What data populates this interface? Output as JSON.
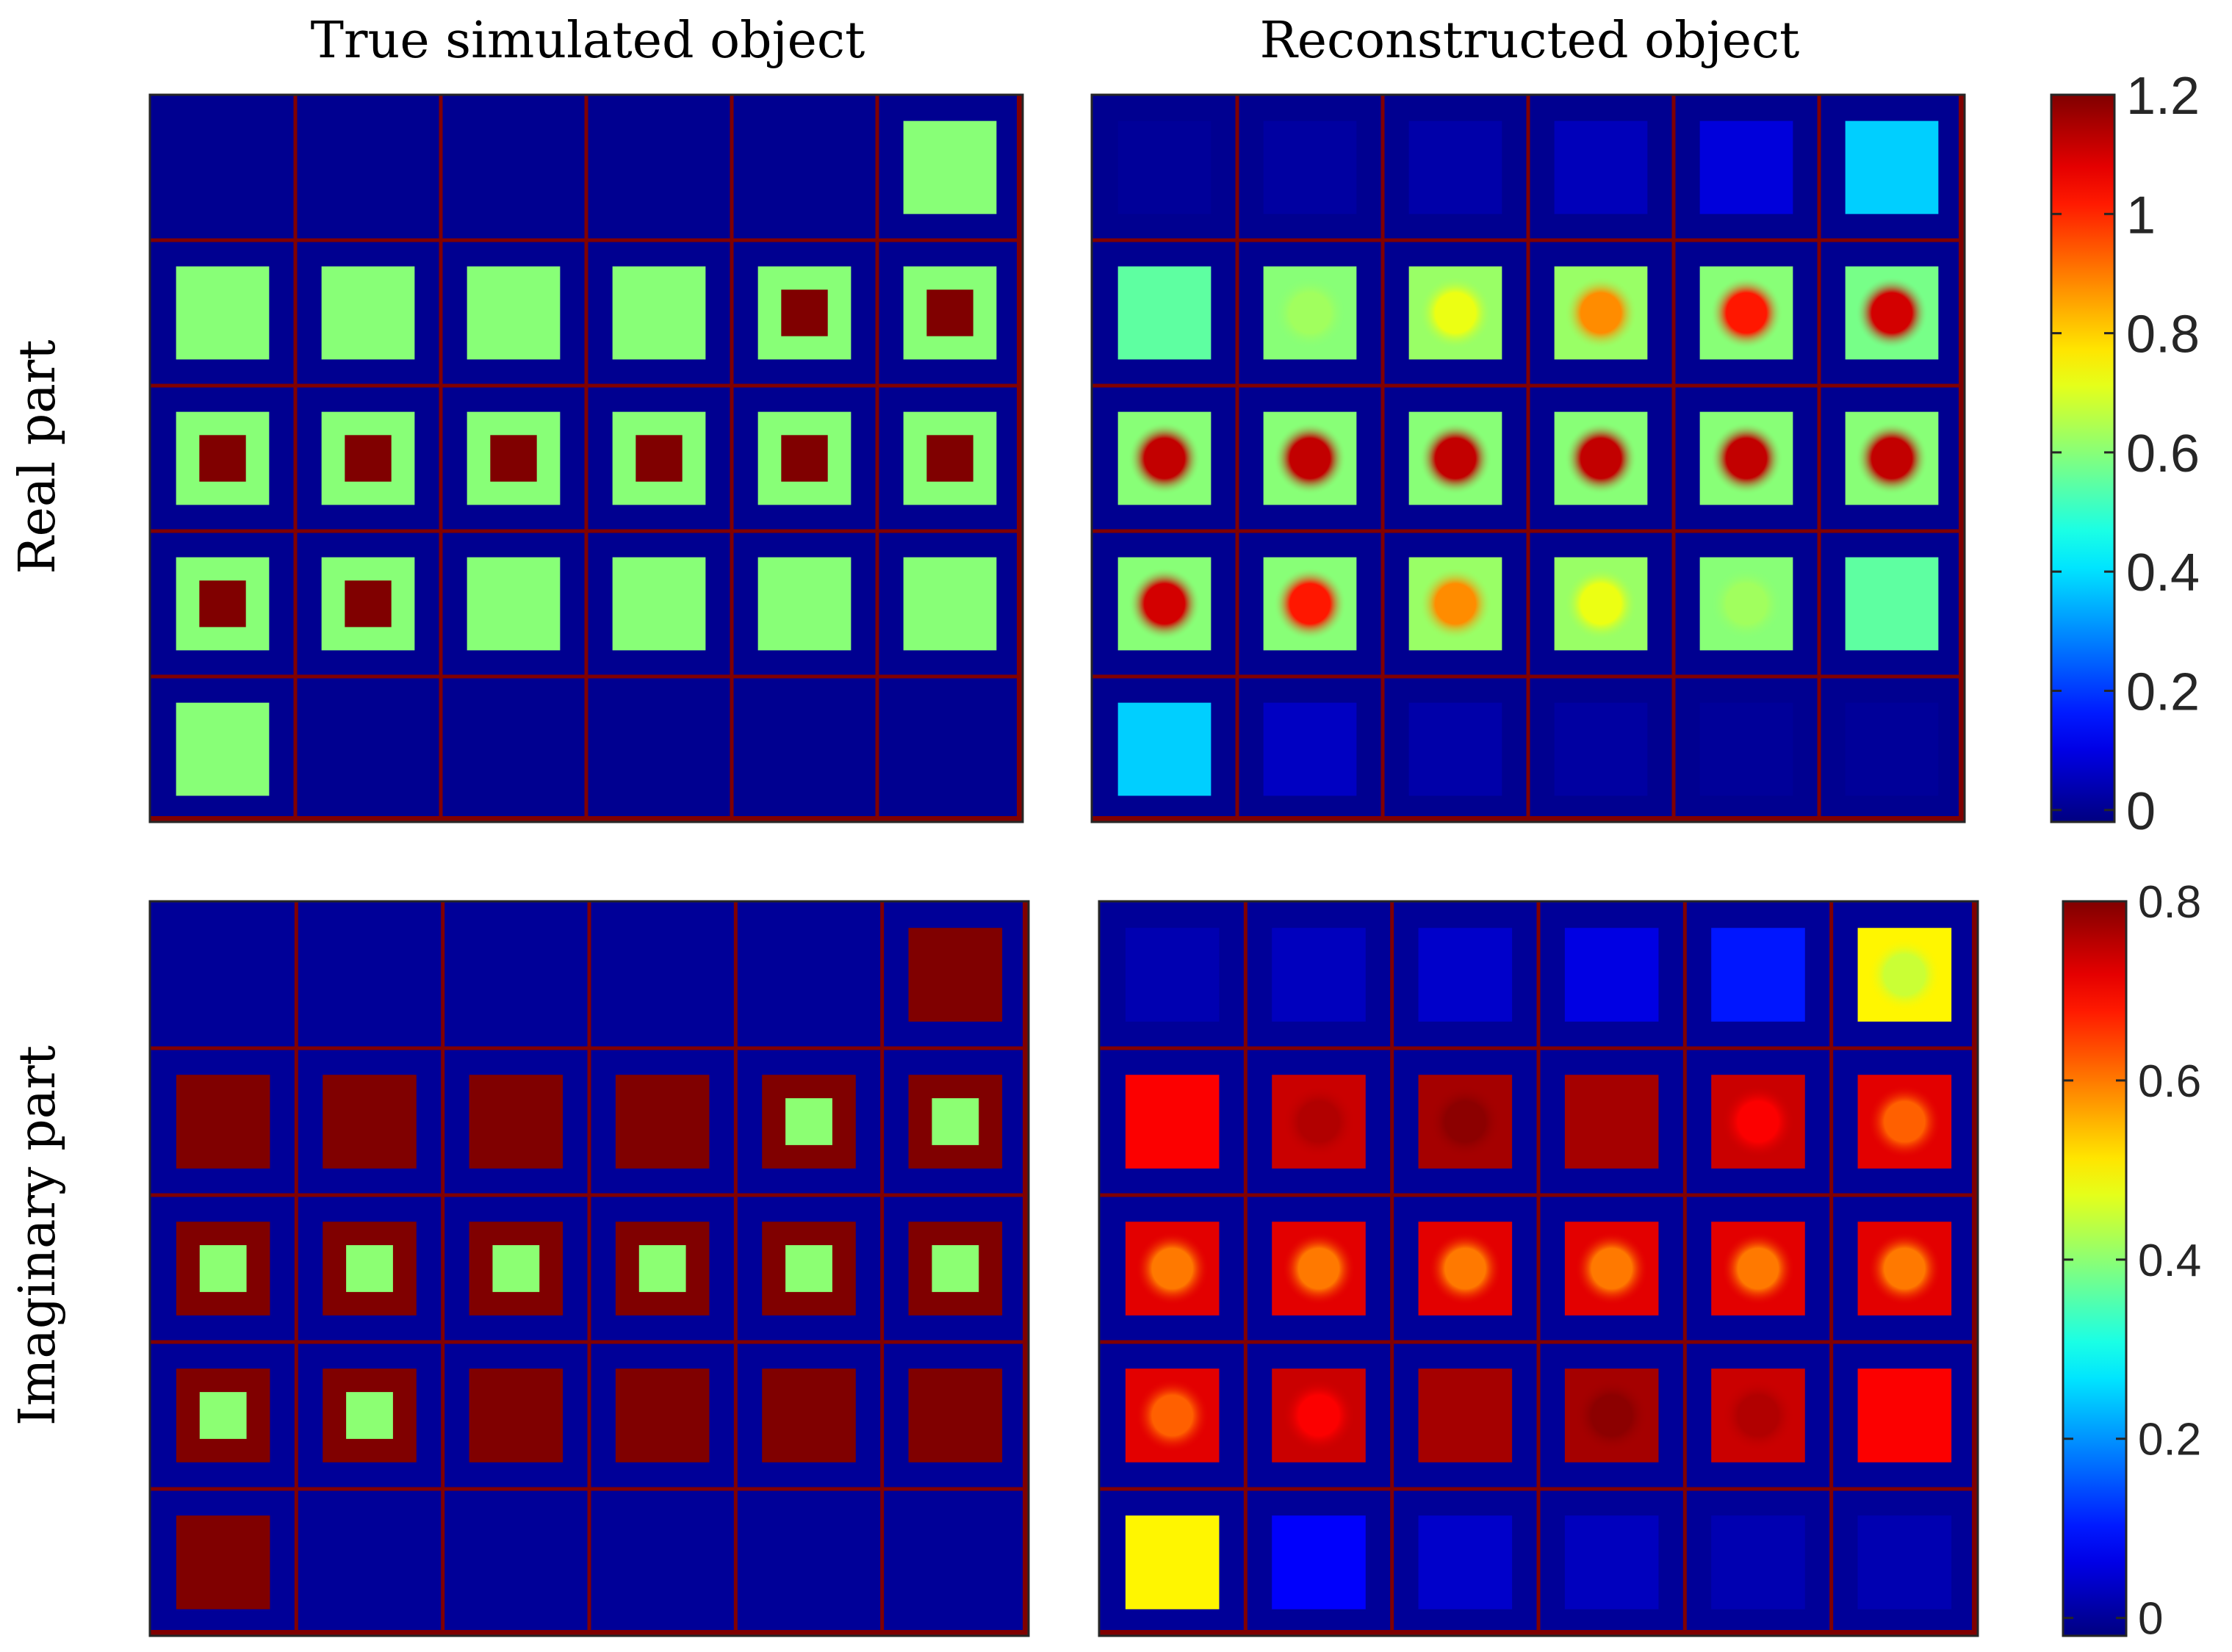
{
  "column_titles": [
    "True simulated object",
    "Reconstructed object"
  ],
  "row_labels": [
    "Real part",
    "Imaginary part"
  ],
  "chart_data": [
    {
      "type": "heatmap",
      "panel": "real-true",
      "rows": 5,
      "cols": 6,
      "colormap": "jet",
      "clim": [
        -0.02,
        1.2
      ],
      "outer": [
        [
          -1,
          -1,
          -1,
          -1,
          -1,
          0.6
        ],
        [
          0.6,
          0.6,
          0.6,
          0.6,
          0.6,
          0.6
        ],
        [
          0.6,
          0.6,
          0.6,
          0.6,
          0.6,
          0.6
        ],
        [
          0.6,
          0.6,
          0.6,
          0.6,
          0.6,
          0.6
        ],
        [
          0.6,
          -1,
          -1,
          -1,
          -1,
          -1
        ]
      ],
      "inner": [
        [
          -1,
          -1,
          -1,
          -1,
          -1,
          -1
        ],
        [
          -1,
          -1,
          -1,
          -1,
          1.2,
          1.2
        ],
        [
          1.2,
          1.2,
          1.2,
          1.2,
          1.2,
          1.2
        ],
        [
          1.2,
          1.2,
          -1,
          -1,
          -1,
          -1
        ],
        [
          -1,
          -1,
          -1,
          -1,
          -1,
          -1
        ]
      ],
      "background": 0
    },
    {
      "type": "heatmap",
      "panel": "real-reconstructed",
      "rows": 5,
      "cols": 6,
      "colormap": "jet",
      "clim": [
        -0.02,
        1.2
      ],
      "outer": [
        [
          0.01,
          0.02,
          0.03,
          0.05,
          0.09,
          0.38
        ],
        [
          0.55,
          0.6,
          0.62,
          0.62,
          0.6,
          0.58
        ],
        [
          0.6,
          0.6,
          0.6,
          0.6,
          0.6,
          0.6
        ],
        [
          0.6,
          0.6,
          0.62,
          0.62,
          0.6,
          0.55
        ],
        [
          0.38,
          0.06,
          0.03,
          0.02,
          0.01,
          0.01
        ]
      ],
      "center": [
        [
          0.01,
          0.02,
          0.03,
          0.05,
          0.09,
          0.38
        ],
        [
          0.55,
          0.63,
          0.72,
          0.88,
          1.02,
          1.1
        ],
        [
          1.12,
          1.12,
          1.12,
          1.12,
          1.12,
          1.12
        ],
        [
          1.1,
          1.02,
          0.88,
          0.72,
          0.63,
          0.55
        ],
        [
          0.38,
          0.06,
          0.03,
          0.02,
          0.01,
          0.01
        ]
      ],
      "background": 0
    },
    {
      "type": "heatmap",
      "panel": "imaginary-true",
      "rows": 5,
      "cols": 6,
      "colormap": "jet",
      "clim": [
        -0.02,
        0.8
      ],
      "outer": [
        [
          -1,
          -1,
          -1,
          -1,
          -1,
          0.8
        ],
        [
          0.8,
          0.8,
          0.8,
          0.8,
          0.8,
          0.8
        ],
        [
          0.8,
          0.8,
          0.8,
          0.8,
          0.8,
          0.8
        ],
        [
          0.8,
          0.8,
          0.8,
          0.8,
          0.8,
          0.8
        ],
        [
          0.8,
          -1,
          -1,
          -1,
          -1,
          -1
        ]
      ],
      "inner": [
        [
          -1,
          -1,
          -1,
          -1,
          -1,
          -1
        ],
        [
          -1,
          -1,
          -1,
          -1,
          0.4,
          0.4
        ],
        [
          0.4,
          0.4,
          0.4,
          0.4,
          0.4,
          0.4
        ],
        [
          0.4,
          0.4,
          -1,
          -1,
          -1,
          -1
        ],
        [
          -1,
          -1,
          -1,
          -1,
          -1,
          -1
        ]
      ],
      "background": 0
    },
    {
      "type": "heatmap",
      "panel": "imaginary-reconstructed",
      "rows": 5,
      "cols": 6,
      "colormap": "jet",
      "clim": [
        -0.02,
        0.8
      ],
      "outer": [
        [
          0.02,
          0.03,
          0.04,
          0.06,
          0.1,
          0.5
        ],
        [
          0.7,
          0.74,
          0.77,
          0.77,
          0.74,
          0.72
        ],
        [
          0.72,
          0.72,
          0.72,
          0.72,
          0.72,
          0.72
        ],
        [
          0.72,
          0.74,
          0.77,
          0.77,
          0.74,
          0.7
        ],
        [
          0.5,
          0.08,
          0.04,
          0.03,
          0.02,
          0.02
        ]
      ],
      "center": [
        [
          0.02,
          0.03,
          0.04,
          0.06,
          0.1,
          0.45
        ],
        [
          0.7,
          0.76,
          0.79,
          0.78,
          0.7,
          0.62
        ],
        [
          0.6,
          0.6,
          0.6,
          0.6,
          0.6,
          0.6
        ],
        [
          0.62,
          0.7,
          0.78,
          0.79,
          0.76,
          0.7
        ],
        [
          0.5,
          0.08,
          0.04,
          0.03,
          0.02,
          0.02
        ]
      ],
      "background": 0
    }
  ],
  "colorbars": [
    {
      "colormap": "jet",
      "clim": [
        -0.02,
        1.2
      ],
      "ticks": [
        0,
        0.2,
        0.4,
        0.6,
        0.8,
        1,
        1.2
      ],
      "tick_labels": [
        "0",
        "0.2",
        "0.4",
        "0.6",
        "0.8",
        "1",
        "1.2"
      ]
    },
    {
      "colormap": "jet",
      "clim": [
        -0.02,
        0.8
      ],
      "ticks": [
        0,
        0.2,
        0.4,
        0.6,
        0.8
      ],
      "tick_labels": [
        "0",
        "0.2",
        "0.4",
        "0.6",
        "0.8"
      ]
    }
  ],
  "colors": {
    "grid_line": "#800000",
    "axis_frame": "#262626"
  }
}
